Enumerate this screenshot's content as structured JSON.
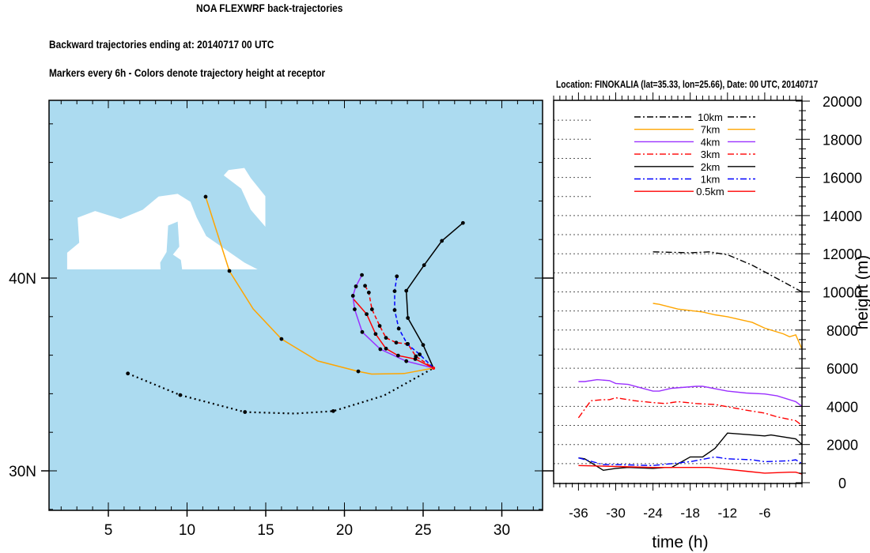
{
  "header": {
    "title": "NOA FLEXWRF back-trajectories",
    "subtitle_1": "Backward trajectories ending at: 20140717  00 UTC",
    "subtitle_2": "Markers every 6h - Colors denote trajectory height at receptor"
  },
  "colors": {
    "sea": "#acdbf0",
    "land": "#ffffff"
  },
  "chart_data": [
    {
      "type": "map-trajectories",
      "lon_range": [
        1.2,
        32.6
      ],
      "lat_range": [
        28.0,
        49.2
      ],
      "lon_ticks": [
        5,
        10,
        15,
        20,
        25,
        30
      ],
      "lon_tick_labels": [
        "5",
        "10",
        "15",
        "20",
        "25",
        "30"
      ],
      "lat_ticks": [
        30,
        40
      ],
      "lat_tick_labels": [
        "30N",
        "40N"
      ],
      "receptor": {
        "name": "FINOKALIA",
        "lat": 35.33,
        "lon": 25.66
      },
      "series": [
        {
          "name": "10km",
          "color": "#000000",
          "style": "dotted",
          "points": [
            [
              6.24,
              35.05
            ],
            [
              9.57,
              33.93
            ],
            [
              13.68,
              33.05
            ],
            [
              16.86,
              32.97
            ],
            [
              19.29,
              33.1
            ],
            [
              22.5,
              33.9
            ],
            [
              25.66,
              35.33
            ]
          ],
          "markers": [
            [
              6.24,
              35.05
            ],
            [
              9.57,
              33.93
            ],
            [
              13.68,
              33.05
            ],
            [
              19.29,
              33.1
            ]
          ]
        },
        {
          "name": "7km",
          "color": "#ffa500",
          "style": "solid",
          "points": [
            [
              11.18,
              44.22
            ],
            [
              12.69,
              40.37
            ],
            [
              14.2,
              38.4
            ],
            [
              16.0,
              36.84
            ],
            [
              18.3,
              35.7
            ],
            [
              20.88,
              35.16
            ],
            [
              21.73,
              35.02
            ],
            [
              23.8,
              35.05
            ],
            [
              25.66,
              35.33
            ]
          ],
          "markers": [
            [
              11.18,
              44.22
            ],
            [
              12.69,
              40.37
            ],
            [
              16.0,
              36.84
            ],
            [
              20.88,
              35.16
            ]
          ]
        },
        {
          "name": "4km",
          "color": "#9b30ff",
          "style": "solid",
          "points": [
            [
              21.11,
              40.16
            ],
            [
              20.73,
              39.57
            ],
            [
              20.54,
              39.08
            ],
            [
              20.65,
              38.38
            ],
            [
              21.13,
              37.2
            ],
            [
              22.28,
              36.31
            ],
            [
              23.93,
              35.69
            ],
            [
              25.66,
              35.33
            ]
          ],
          "markers": [
            [
              21.11,
              40.16
            ],
            [
              20.73,
              39.57
            ],
            [
              20.54,
              39.08
            ],
            [
              20.65,
              38.38
            ],
            [
              21.13,
              37.2
            ],
            [
              22.28,
              36.31
            ],
            [
              23.93,
              35.69
            ]
          ]
        },
        {
          "name": "3km",
          "color": "#ff0000",
          "style": "dashed",
          "points": [
            [
              21.31,
              39.6
            ],
            [
              21.55,
              39.25
            ],
            [
              21.75,
              38.38
            ],
            [
              22.24,
              37.52
            ],
            [
              22.64,
              36.9
            ],
            [
              23.29,
              36.65
            ],
            [
              24.03,
              36.58
            ],
            [
              24.54,
              35.94
            ],
            [
              25.66,
              35.33
            ]
          ],
          "markers": [
            [
              21.31,
              39.6
            ],
            [
              21.55,
              39.25
            ],
            [
              21.75,
              38.38
            ],
            [
              22.24,
              37.52
            ],
            [
              22.64,
              36.9
            ],
            [
              23.29,
              36.65
            ],
            [
              24.03,
              36.58
            ],
            [
              24.54,
              35.94
            ]
          ]
        },
        {
          "name": "2km",
          "color": "#000000",
          "style": "solid",
          "points": [
            [
              27.53,
              42.86
            ],
            [
              26.19,
              41.93
            ],
            [
              25.06,
              40.67
            ],
            [
              23.93,
              39.34
            ],
            [
              24.03,
              37.93
            ],
            [
              25.0,
              36.53
            ],
            [
              25.66,
              35.33
            ]
          ],
          "markers": [
            [
              27.53,
              42.86
            ],
            [
              26.19,
              41.93
            ],
            [
              25.06,
              40.67
            ],
            [
              23.93,
              39.34
            ],
            [
              24.03,
              37.93
            ],
            [
              25.0,
              36.53
            ]
          ]
        },
        {
          "name": "1km",
          "color": "#0000ff",
          "style": "dashed",
          "points": [
            [
              23.33,
              40.09
            ],
            [
              23.19,
              39.32
            ],
            [
              23.19,
              38.34
            ],
            [
              23.45,
              37.38
            ],
            [
              23.99,
              36.58
            ],
            [
              24.78,
              36.04
            ],
            [
              25.66,
              35.33
            ]
          ],
          "markers": [
            [
              23.33,
              40.09
            ],
            [
              23.19,
              39.32
            ],
            [
              23.19,
              38.34
            ],
            [
              23.45,
              37.38
            ],
            [
              23.99,
              36.58
            ],
            [
              24.78,
              36.04
            ]
          ]
        },
        {
          "name": "0.5km",
          "color": "#ff0000",
          "style": "solid",
          "points": [
            [
              20.6,
              38.89
            ],
            [
              21.41,
              38.13
            ],
            [
              21.98,
              37.1
            ],
            [
              22.64,
              36.34
            ],
            [
              23.41,
              35.98
            ],
            [
              24.5,
              35.8
            ],
            [
              25.66,
              35.33
            ]
          ],
          "markers": [
            [
              21.41,
              38.13
            ],
            [
              21.98,
              37.1
            ],
            [
              22.64,
              36.34
            ],
            [
              23.41,
              35.98
            ],
            [
              24.5,
              35.8
            ]
          ]
        }
      ]
    },
    {
      "type": "line",
      "title": "Location: FINOKALIA (lat=35.33,  lon=25.66), Date: 00 UTC, 20140717",
      "xlabel": "time (h)",
      "ylabel": "height (m)",
      "xlim": [
        -40,
        0
      ],
      "ylim": [
        0,
        20000
      ],
      "x_ticks": [
        -36,
        -30,
        -24,
        -18,
        -12,
        -6
      ],
      "x_tick_labels": [
        "-36",
        "-30",
        "-24",
        "-18",
        "-12",
        "-6"
      ],
      "y_ticks": [
        0,
        2000,
        4000,
        6000,
        8000,
        10000,
        12000,
        14000,
        16000,
        18000,
        20000
      ],
      "y_tick_labels": [
        "0",
        "2000",
        "4000",
        "6000",
        "8000",
        "10000",
        "12000",
        "14000",
        "16000",
        "18000",
        "20000"
      ],
      "grid": "horizontal dotted every 1000",
      "legend_position": "top-center",
      "series": [
        {
          "name": "10km",
          "color": "#000000",
          "style": "dashdot",
          "x": [
            -24,
            -18,
            -15,
            -12,
            -8,
            -4,
            0
          ],
          "y": [
            12100,
            12050,
            12100,
            11950,
            11400,
            10700,
            10000
          ]
        },
        {
          "name": "7km",
          "color": "#ffa500",
          "style": "solid",
          "x": [
            -24,
            -23,
            -20,
            -16,
            -14,
            -12,
            -8,
            -6,
            -3,
            -2,
            -1,
            0
          ],
          "y": [
            9400,
            9350,
            9100,
            8950,
            8800,
            8700,
            8400,
            8100,
            7800,
            7650,
            7750,
            7000
          ]
        },
        {
          "name": "4km",
          "color": "#9b30ff",
          "style": "solid",
          "x": [
            -36,
            -35,
            -33,
            -31,
            -30,
            -28,
            -24,
            -23,
            -21,
            -17,
            -16,
            -12,
            -9,
            -6,
            -4,
            -1,
            0
          ],
          "y": [
            5300,
            5300,
            5400,
            5350,
            5200,
            5150,
            4800,
            4800,
            4950,
            5050,
            5050,
            4800,
            4700,
            4650,
            4550,
            4250,
            4000
          ]
        },
        {
          "name": "3km",
          "color": "#ff0000",
          "style": "dashdot",
          "x": [
            -36,
            -34,
            -32,
            -31,
            -30,
            -27,
            -24,
            -22,
            -20,
            -17,
            -14,
            -9,
            -6,
            -4,
            -1,
            0
          ],
          "y": [
            3400,
            4300,
            4350,
            4350,
            4450,
            4300,
            4200,
            4150,
            4250,
            4150,
            4100,
            3800,
            3650,
            3450,
            3250,
            3000
          ]
        },
        {
          "name": "2km",
          "color": "#000000",
          "style": "solid",
          "x": [
            -36,
            -35,
            -32,
            -30,
            -28,
            -24,
            -22,
            -21,
            -18,
            -16,
            -14,
            -12,
            -8,
            -6,
            -5,
            -4,
            -1,
            0
          ],
          "y": [
            1300,
            1250,
            650,
            750,
            800,
            750,
            800,
            800,
            1350,
            1350,
            1800,
            2600,
            2500,
            2450,
            2500,
            2450,
            2300,
            2000
          ]
        },
        {
          "name": "1km",
          "color": "#0000ff",
          "style": "dashdot",
          "x": [
            -36,
            -32,
            -30,
            -24,
            -21,
            -18,
            -14,
            -12,
            -8,
            -6,
            -2,
            -1,
            0
          ],
          "y": [
            1300,
            950,
            950,
            900,
            1000,
            1100,
            1350,
            1250,
            1200,
            1100,
            1150,
            1200,
            1000
          ]
        },
        {
          "name": "0.5km",
          "color": "#ff0000",
          "style": "solid",
          "x": [
            -36,
            -30,
            -24,
            -18,
            -15,
            -12,
            -9,
            -6,
            -2,
            -1,
            0
          ],
          "y": [
            900,
            850,
            800,
            800,
            800,
            700,
            600,
            500,
            550,
            550,
            450
          ]
        }
      ]
    }
  ]
}
